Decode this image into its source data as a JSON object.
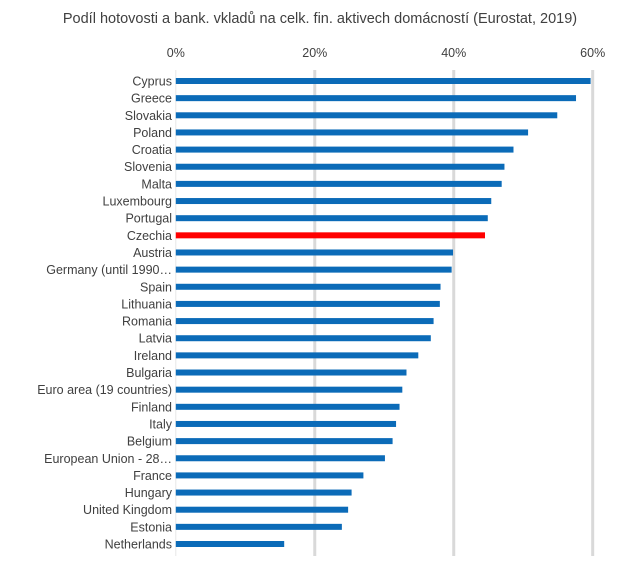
{
  "chart_data": {
    "type": "bar",
    "orientation": "horizontal",
    "title": "Podíl hotovosti a bank. vkladů na celk. fin. aktivech domácností (Eurostat, 2019)",
    "xlabel": "",
    "ylabel": "",
    "xlim": [
      0,
      60
    ],
    "x_ticks": [
      "0%",
      "20%",
      "40%",
      "60%"
    ],
    "x_tick_values": [
      0,
      20,
      40,
      60
    ],
    "x_axis_position": "top",
    "grid": true,
    "categories": [
      "Cyprus",
      "Greece",
      "Slovakia",
      "Poland",
      "Croatia",
      "Slovenia",
      "Malta",
      "Luxembourg",
      "Portugal",
      "Czechia",
      "Austria",
      "Germany (until 1990…",
      "Spain",
      "Lithuania",
      "Romania",
      "Latvia",
      "Ireland",
      "Bulgaria",
      "Euro area (19 countries)",
      "Finland",
      "Italy",
      "Belgium",
      "European Union - 28…",
      "France",
      "Hungary",
      "United Kingdom",
      "Estonia",
      "Netherlands"
    ],
    "values": [
      59.7,
      57.6,
      54.9,
      50.7,
      48.6,
      47.3,
      46.9,
      45.4,
      44.9,
      44.5,
      39.9,
      39.7,
      38.1,
      38.0,
      37.1,
      36.7,
      34.9,
      33.2,
      32.6,
      32.2,
      31.7,
      31.2,
      30.1,
      27.0,
      25.3,
      24.8,
      23.9,
      15.6
    ],
    "unit": "%",
    "bar_color": "#0b6bb8",
    "highlight_color": "#ff0000",
    "highlight_category": "Czechia",
    "grid_color": "#d9d9d9"
  }
}
